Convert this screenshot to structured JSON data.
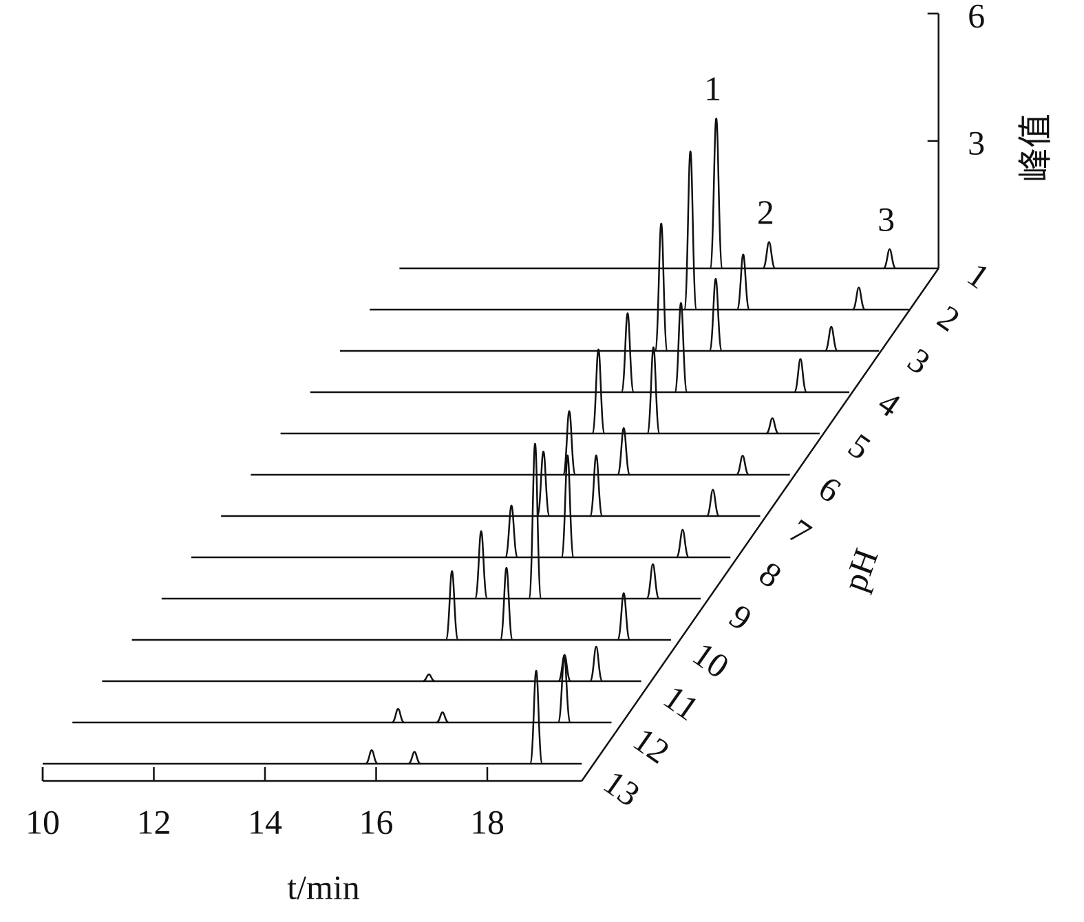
{
  "chart_data": {
    "type": "waterfall",
    "x_label": "t/min",
    "y_label": "峰值",
    "z_label": "pH",
    "xlim": [
      10,
      19.7
    ],
    "xticks": [
      10,
      12,
      14,
      16,
      18
    ],
    "ylim": [
      0,
      6
    ],
    "yticks": [
      3,
      6
    ],
    "color": "#111111",
    "peak_labels": [
      "1",
      "2",
      "3"
    ],
    "series": [
      {
        "name": "1",
        "x": [
          15.7,
          16.65,
          18.82
        ],
        "values": [
          3.53,
          0.62,
          0.45
        ]
      },
      {
        "name": "2",
        "x": [
          15.77,
          16.72,
          18.8
        ],
        "values": [
          3.73,
          1.3,
          0.52
        ]
      },
      {
        "name": "3",
        "x": [
          15.78,
          16.76,
          18.84
        ],
        "values": [
          3.0,
          1.7,
          0.57
        ]
      },
      {
        "name": "4",
        "x": [
          15.71,
          16.67,
          18.82
        ],
        "values": [
          1.86,
          2.1,
          0.78
        ]
      },
      {
        "name": "5",
        "x": [
          15.72,
          16.71,
          18.85
        ],
        "values": [
          1.98,
          2.03,
          0.36
        ]
      },
      {
        "name": "6",
        "x": [
          15.73,
          16.71,
          18.85
        ],
        "values": [
          1.5,
          1.1,
          0.45
        ]
      },
      {
        "name": "7",
        "x": [
          15.8,
          16.75,
          18.85
        ],
        "values": [
          1.52,
          1.43,
          0.62
        ]
      },
      {
        "name": "8",
        "x": [
          15.76,
          16.77,
          18.84
        ],
        "values": [
          1.22,
          2.4,
          0.65
        ]
      },
      {
        "name": "9",
        "x": [
          15.75,
          16.72,
          18.84
        ],
        "values": [
          1.59,
          3.65,
          0.81
        ]
      },
      {
        "name": "10",
        "x": [
          15.76,
          16.74,
          18.85
        ],
        "values": [
          1.62,
          1.7,
          1.1
        ]
      },
      {
        "name": "11",
        "x": [
          15.88,
          18.32,
          18.89
        ],
        "values": [
          0.16,
          0.62,
          0.81
        ]
      },
      {
        "name": "12",
        "x": [
          15.86,
          16.66,
          18.85
        ],
        "values": [
          0.32,
          0.24,
          1.54
        ]
      },
      {
        "name": "13",
        "x": [
          15.92,
          16.69,
          18.88
        ],
        "values": [
          0.32,
          0.28,
          2.19
        ]
      }
    ]
  }
}
